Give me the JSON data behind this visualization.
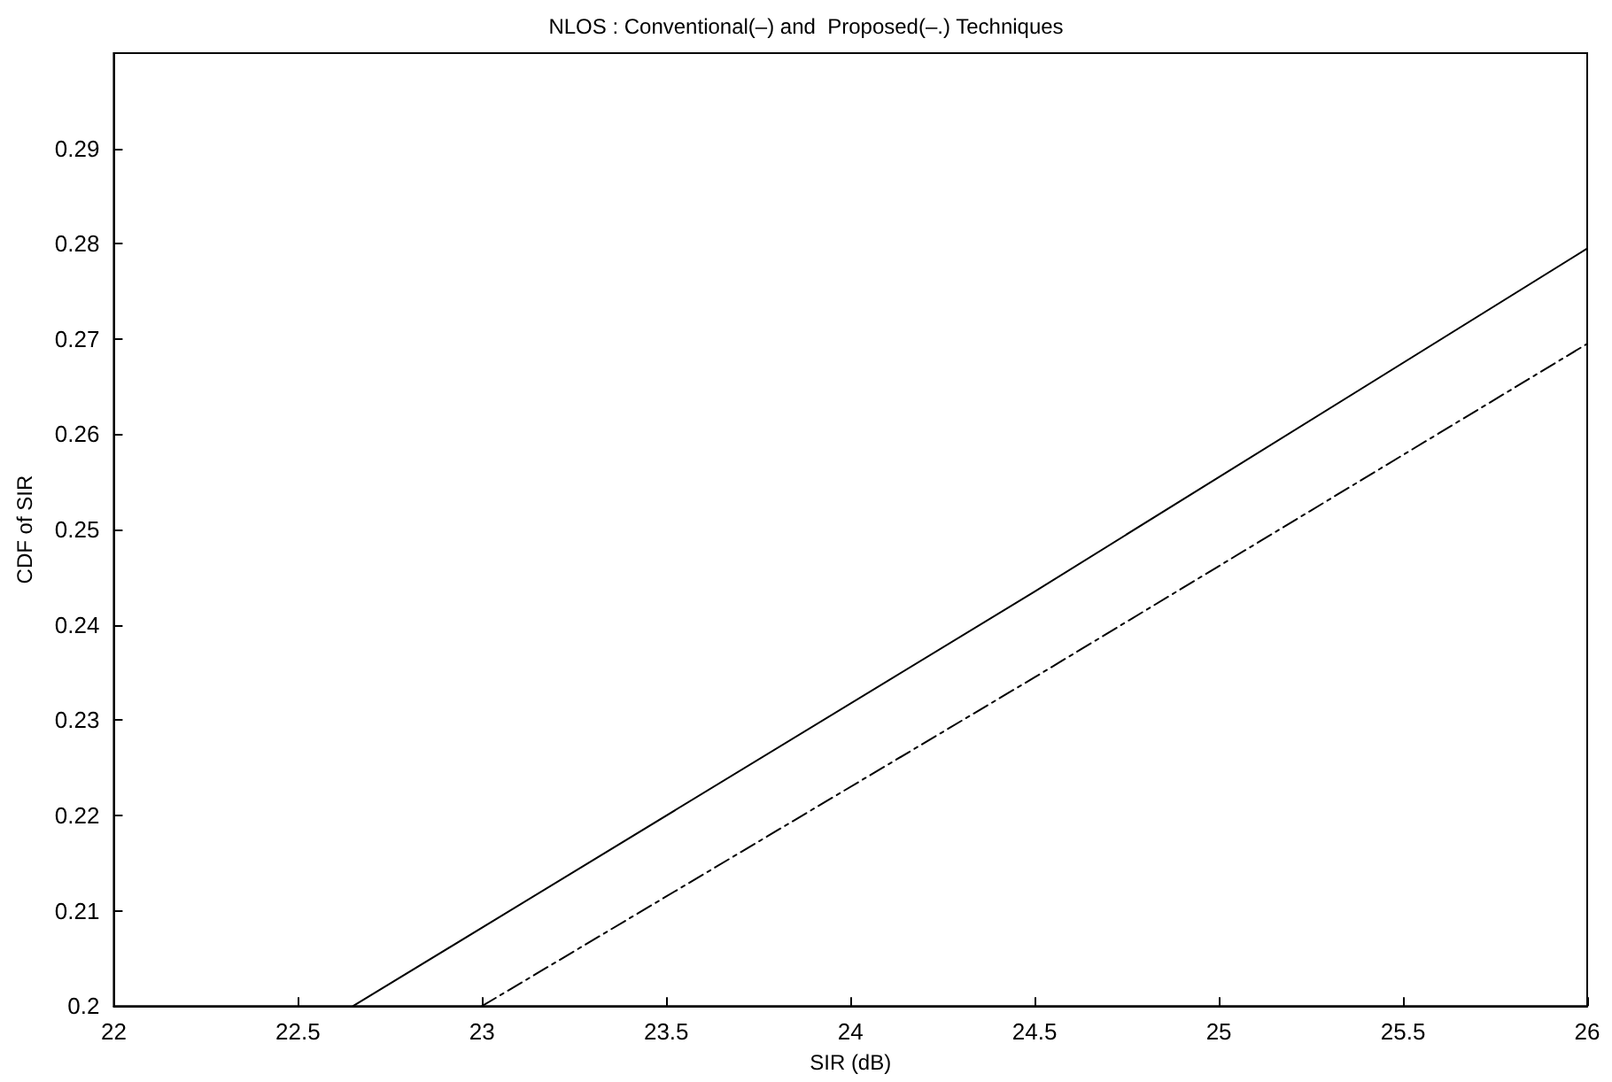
{
  "chart_data": {
    "type": "line",
    "title": "NLOS : Conventional(–) and  Proposed(–.) Techniques",
    "xlabel": "SIR (dB)",
    "ylabel": "CDF of SIR",
    "series": [
      {
        "color": "#000000",
        "line_style": "solid",
        "x": [
          22.65,
          24.5,
          26
        ],
        "values": [
          0.2,
          0.2435,
          0.2795
        ]
      },
      {
        "color": "#000000",
        "line_style": "dashdot",
        "x": [
          23,
          24.5,
          26
        ],
        "values": [
          0.2,
          0.2345,
          0.2695
        ]
      }
    ],
    "xlim": [
      22,
      26
    ],
    "xticks": [
      22,
      22.5,
      23,
      23.5,
      24,
      24.5,
      25,
      25.5,
      26
    ],
    "ylim": [
      0.2,
      0.3
    ],
    "yticks": [
      0.2,
      0.21,
      0.22,
      0.23,
      0.24,
      0.25,
      0.26,
      0.27,
      0.28,
      0.29
    ],
    "grid": false,
    "marker": "none"
  }
}
